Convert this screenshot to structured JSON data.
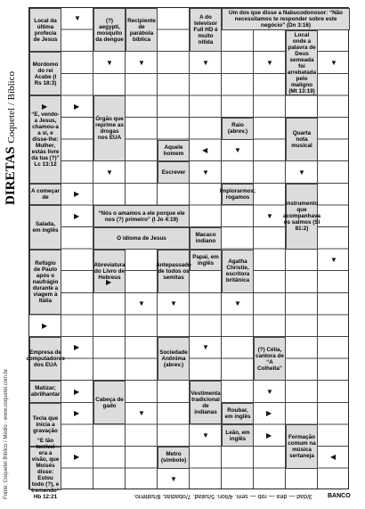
{
  "header": {
    "title": "DIRETAS",
    "subtitle": "Coquetel / Bíblico"
  },
  "source": "Fonte: Coquetel Bíblico / Médio - www.coquetel.com.br",
  "clues": [
    "Local da última profecia de Jesus",
    "(?) aegypti, mosquito da dengue",
    "Recipiente de parábola bíblica",
    "A do televisor Full HD é muito nítida",
    "Um dos que disse a Nabucodonosor: “Não necessitamos te responder sobre este negócio” (Dn 3:16)",
    "Mordomo do rei Acabe (I Rs 18:3)",
    "Local onde a palavra de Deus semeada foi arrebatada pelo maligno (Mt 13:19)",
    "“E, vendo-a Jesus, chamou-a a si, e disse-lhe: Mulher, estás livre da tua (?)” Lc 13:12",
    "Órgão que reprime as drogas nos EUA",
    "Aquele homem",
    "Escrever",
    "Raio (abrev.)",
    "Quarta nota musical",
    "A começar de",
    "Implorarmos; rogamos",
    "Instrumento que acompanhava os salmos (Sl 81:2)",
    "Salada, em inglês",
    "“Nós o amamos a ele porque ele nos (?) primeiro” (I Jo 4:19)",
    "O idioma de Jesus",
    "Macaco indiano",
    "Papai, em inglês",
    "Refúgio de Paulo após o naufrágio durante a viagem à Itália",
    "Abreviatura do Livro de Hebreus",
    "Antepassado de todos os semitas",
    "Agatha Christie, escritora britânica",
    "Empresa de computadores dos EUA",
    "Sociedade Anônima (abrev.)",
    "(?) Célia, cantora de “A Colheita”",
    "Matizar; abrilhantar",
    "Cabeça de gado",
    "Vestimenta tradicional de indianas",
    "Tecla que inicia a gravação",
    "Roubar, em inglês",
    "Leão, em inglês",
    "“E tão terrível era a visão, que Moisés disse: Estou todo (?), e tremendo” Hb 12:21",
    "Metro (símbolo)",
    "Formação comum na música sertaneja"
  ],
  "bank": {
    "label": "BANCO",
    "text": "3/dad — dea — rob — sem. 4/lion. 5/salad. 7/obadias. 8/saltério."
  }
}
